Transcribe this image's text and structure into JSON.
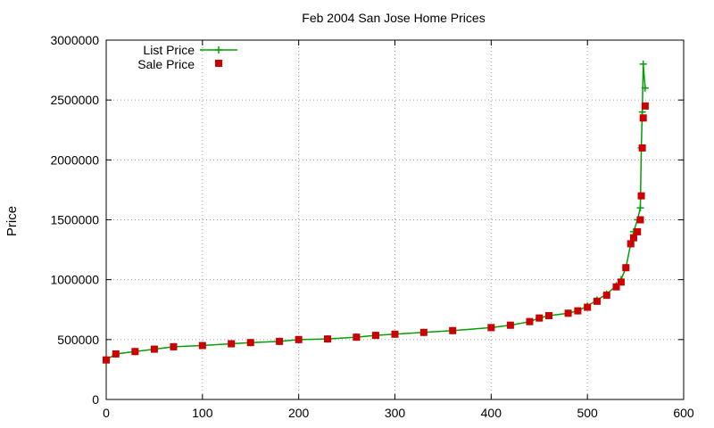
{
  "chart_data": {
    "type": "scatter",
    "title": "Feb 2004 San Jose Home Prices",
    "xlabel": "",
    "ylabel": "Price",
    "xlim": [
      0,
      600
    ],
    "ylim": [
      0,
      3000000
    ],
    "xticks": [
      0,
      100,
      200,
      300,
      400,
      500,
      600
    ],
    "yticks": [
      0,
      500000,
      1000000,
      1500000,
      2000000,
      2500000,
      3000000
    ],
    "grid": true,
    "legend_position": "top-left",
    "x": [
      0,
      10,
      30,
      50,
      70,
      100,
      130,
      150,
      180,
      200,
      230,
      260,
      280,
      300,
      330,
      360,
      400,
      420,
      440,
      450,
      460,
      480,
      490,
      500,
      510,
      520,
      530,
      535,
      540,
      545,
      548,
      552,
      555,
      556,
      557,
      558,
      560
    ],
    "series": [
      {
        "name": "List Price",
        "style": "linespoints",
        "marker": "plus",
        "color": "#00a000",
        "values": [
          330000,
          380000,
          400000,
          420000,
          440000,
          450000,
          465000,
          475000,
          485000,
          500000,
          505000,
          520000,
          535000,
          545000,
          560000,
          575000,
          600000,
          620000,
          650000,
          680000,
          700000,
          720000,
          740000,
          780000,
          830000,
          880000,
          950000,
          1000000,
          1100000,
          1300000,
          1400000,
          1500000,
          1600000,
          2100000,
          2400000,
          2800000,
          2600000
        ]
      },
      {
        "name": "Sale Price",
        "style": "points",
        "marker": "square",
        "color": "#cc0000",
        "values": [
          330000,
          380000,
          400000,
          420000,
          440000,
          450000,
          465000,
          475000,
          485000,
          500000,
          505000,
          520000,
          535000,
          545000,
          560000,
          575000,
          600000,
          620000,
          650000,
          680000,
          700000,
          720000,
          740000,
          770000,
          820000,
          870000,
          940000,
          980000,
          1100000,
          1300000,
          1350000,
          1400000,
          1500000,
          1700000,
          2100000,
          2350000,
          2450000
        ]
      }
    ]
  }
}
